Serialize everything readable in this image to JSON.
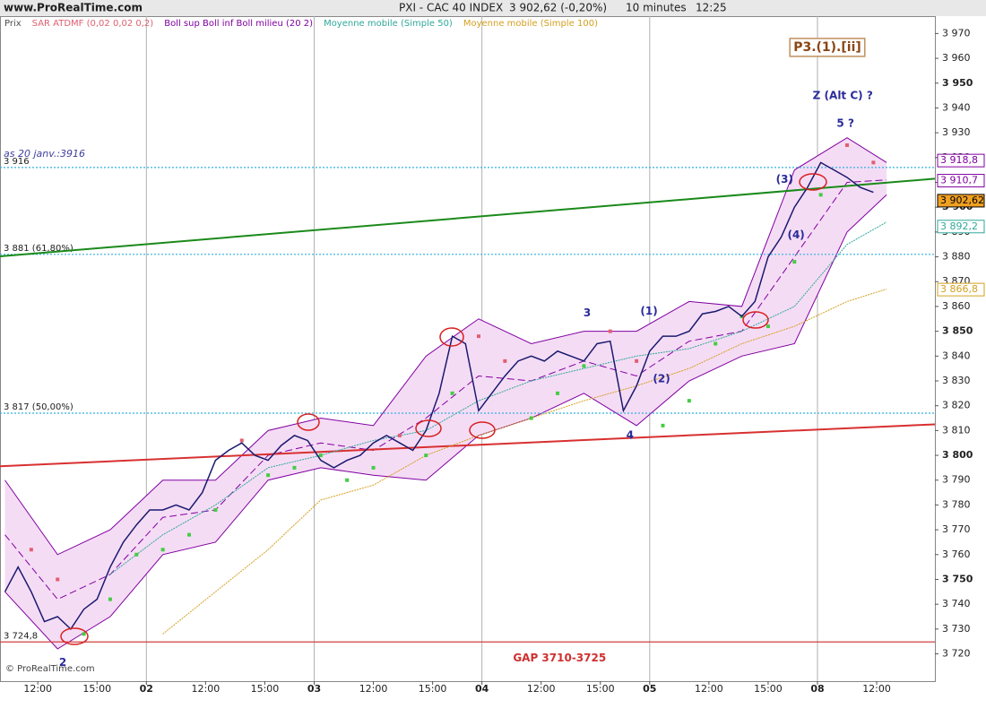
{
  "chart_data": {
    "type": "line",
    "source": "www.ProRealTime.com",
    "title": "PXI - CAC 40 INDEX",
    "last_price": "3 902,62 (-0,20%)",
    "interval": "10 minutes",
    "time": "12:25",
    "copyright": "© ProRealTime.com",
    "xlim": [
      6.5,
      290.7
    ],
    "xticks": [
      {
        "value": 18,
        "label": "12:00"
      },
      {
        "value": 36,
        "label": "15:00"
      },
      {
        "value": 51,
        "label": "02"
      },
      {
        "value": 69,
        "label": "12:00"
      },
      {
        "value": 87,
        "label": "15:00"
      },
      {
        "value": 102,
        "label": "03"
      },
      {
        "value": 120,
        "label": "12:00"
      },
      {
        "value": 138,
        "label": "15:00"
      },
      {
        "value": 153,
        "label": "04"
      },
      {
        "value": 171,
        "label": "12:00"
      },
      {
        "value": 189,
        "label": "15:00"
      },
      {
        "value": 204,
        "label": "05"
      },
      {
        "value": 222,
        "label": "12:00"
      },
      {
        "value": 240,
        "label": "15:00"
      },
      {
        "value": 255,
        "label": "08"
      },
      {
        "value": 273,
        "label": "12:00"
      }
    ],
    "ylim": [
      3709,
      3977
    ],
    "yticks": [
      {
        "value": 3720,
        "label": "3 720"
      },
      {
        "value": 3730,
        "label": "3 730"
      },
      {
        "value": 3740,
        "label": "3 740"
      },
      {
        "value": 3750,
        "label": "3 750"
      },
      {
        "value": 3760,
        "label": "3 760"
      },
      {
        "value": 3770,
        "label": "3 770"
      },
      {
        "value": 3780,
        "label": "3 780"
      },
      {
        "value": 3790,
        "label": "3 790"
      },
      {
        "value": 3800,
        "label": "3 800"
      },
      {
        "value": 3810,
        "label": "3 810"
      },
      {
        "value": 3820,
        "label": "3 820"
      },
      {
        "value": 3830,
        "label": "3 830"
      },
      {
        "value": 3840,
        "label": "3 840"
      },
      {
        "value": 3850,
        "label": "3 850"
      },
      {
        "value": 3860,
        "label": "3 860"
      },
      {
        "value": 3870,
        "label": "3 870"
      },
      {
        "value": 3880,
        "label": "3 880"
      },
      {
        "value": 3890,
        "label": "3 890"
      },
      {
        "value": 3900,
        "label": "3 900"
      },
      {
        "value": 3910,
        "label": "3 910"
      },
      {
        "value": 3920,
        "label": "3 920"
      },
      {
        "value": 3930,
        "label": "3 930"
      },
      {
        "value": 3940,
        "label": "3 940"
      },
      {
        "value": 3950,
        "label": "3 950"
      },
      {
        "value": 3960,
        "label": "3 960"
      },
      {
        "value": 3970,
        "label": "3 970"
      }
    ],
    "series": [
      {
        "name": "Prix",
        "color": "#1a1a6e",
        "x": [
          8,
          12,
          16,
          20,
          24,
          28,
          32,
          36,
          40,
          44,
          48,
          52,
          56,
          60,
          64,
          68,
          72,
          76,
          80,
          84,
          88,
          92,
          96,
          100,
          104,
          108,
          112,
          116,
          120,
          124,
          128,
          132,
          136,
          140,
          144,
          148,
          152,
          156,
          160,
          164,
          168,
          172,
          176,
          180,
          184,
          188,
          192,
          196,
          200,
          204,
          208,
          212,
          216,
          220,
          224,
          228,
          232,
          236,
          240,
          244,
          248,
          252,
          256,
          260,
          264,
          268,
          272
        ],
        "values": [
          3745,
          3755,
          3745,
          3733,
          3735,
          3730,
          3738,
          3742,
          3755,
          3765,
          3772,
          3778,
          3778,
          3780,
          3778,
          3785,
          3798,
          3802,
          3805,
          3800,
          3798,
          3804,
          3808,
          3806,
          3798,
          3795,
          3798,
          3800,
          3805,
          3808,
          3805,
          3802,
          3810,
          3825,
          3848,
          3845,
          3818,
          3825,
          3832,
          3838,
          3840,
          3838,
          3842,
          3840,
          3838,
          3845,
          3846,
          3818,
          3828,
          3842,
          3848,
          3848,
          3850,
          3857,
          3858,
          3860,
          3856,
          3862,
          3880,
          3888,
          3900,
          3908,
          3918,
          3915,
          3912,
          3908,
          3906
        ]
      },
      {
        "name": "Moyenne mobile (Simple 50)",
        "color": "#2fa89a",
        "x": [
          8,
          24,
          40,
          56,
          72,
          88,
          104,
          120,
          136,
          152,
          168,
          184,
          200,
          216,
          232,
          248,
          264,
          276
        ],
        "values": [
          null,
          null,
          3752,
          3768,
          3780,
          3795,
          3800,
          3806,
          3810,
          3822,
          3830,
          3835,
          3840,
          3843,
          3850,
          3860,
          3885,
          3894
        ]
      },
      {
        "name": "Moyenne mobile (Simple 100)",
        "color": "#d4a020",
        "x": [
          8,
          24,
          40,
          56,
          72,
          88,
          104,
          120,
          136,
          152,
          168,
          184,
          200,
          216,
          232,
          248,
          264,
          276
        ],
        "values": [
          null,
          null,
          null,
          3728,
          3745,
          3762,
          3782,
          3788,
          3800,
          3808,
          3815,
          3822,
          3828,
          3835,
          3845,
          3852,
          3862,
          3867
        ]
      }
    ],
    "bollinger": {
      "name": "Boll sup Boll inf Boll milieu (20 2)",
      "color": "#8000a0",
      "fill": "#f5dcf5",
      "x": [
        8,
        24,
        40,
        56,
        72,
        88,
        104,
        120,
        136,
        152,
        168,
        184,
        200,
        216,
        232,
        248,
        264,
        276
      ],
      "upper": [
        3790,
        3760,
        3770,
        3790,
        3790,
        3810,
        3815,
        3812,
        3840,
        3855,
        3845,
        3850,
        3850,
        3862,
        3860,
        3915,
        3928,
        3918
      ],
      "middle": [
        3768,
        3742,
        3752,
        3775,
        3778,
        3800,
        3805,
        3802,
        3815,
        3832,
        3830,
        3838,
        3832,
        3846,
        3850,
        3880,
        3910,
        3911
      ],
      "lower": [
        3745,
        3722,
        3735,
        3760,
        3765,
        3790,
        3795,
        3792,
        3790,
        3808,
        3815,
        3825,
        3812,
        3830,
        3840,
        3845,
        3890,
        3905
      ]
    },
    "sar": {
      "name": "SAR ATDMF (0,02 0,02 0,2)",
      "color": "#e06070",
      "x": [
        16,
        24,
        32,
        40,
        48,
        56,
        64,
        72,
        80,
        88,
        96,
        104,
        112,
        120,
        128,
        136,
        144,
        152,
        160,
        168,
        176,
        184,
        192,
        200,
        208,
        216,
        224,
        232,
        240,
        248,
        256,
        264,
        272
      ],
      "values": [
        3762,
        3750,
        3728,
        3742,
        3760,
        3762,
        3768,
        3778,
        3806,
        3792,
        3795,
        3800,
        3790,
        3795,
        3808,
        3800,
        3825,
        3848,
        3838,
        3815,
        3825,
        3836,
        3850,
        3838,
        3812,
        3822,
        3845,
        3856,
        3852,
        3878,
        3905,
        3925,
        3918
      ],
      "colors": [
        "#e06070",
        "#e06070",
        "#44cc44",
        "#44cc44",
        "#44cc44",
        "#44cc44",
        "#44cc44",
        "#44cc44",
        "#e06070",
        "#44cc44",
        "#44cc44",
        "#44cc44",
        "#44cc44",
        "#44cc44",
        "#e06070",
        "#44cc44",
        "#44cc44",
        "#e06070",
        "#e06070",
        "#44cc44",
        "#44cc44",
        "#44cc44",
        "#e06070",
        "#e06070",
        "#44cc44",
        "#44cc44",
        "#44cc44",
        "#44cc44",
        "#44cc44",
        "#44cc44",
        "#44cc44",
        "#e06070",
        "#e06070"
      ]
    },
    "levels": [
      {
        "value": 3916,
        "label": "3 916",
        "note": "as 20 janv.:3916",
        "color": "#30b0e0",
        "style": "dotted"
      },
      {
        "value": 3881,
        "label": "3 881 (61,80%)",
        "color": "#30b0e0",
        "style": "dotted"
      },
      {
        "value": 3817,
        "label": "3 817 (50,00%)",
        "color": "#30b0e0",
        "style": "dotted"
      },
      {
        "value": 3724.8,
        "label": "3 724,8",
        "color": "#d04040",
        "style": "solid"
      }
    ],
    "trendlines": [
      {
        "x": [
          6.5,
          290.7
        ],
        "values": [
          3880.2,
          3911.5
        ],
        "color": "#1a8a1a"
      },
      {
        "x": [
          6.5,
          290.7
        ],
        "values": [
          3795.6,
          3812.5
        ],
        "color": "#d83030"
      }
    ],
    "last_labels": [
      {
        "value": 3918.8,
        "label": "3 918,8",
        "color": "#8000a0"
      },
      {
        "value": 3910.7,
        "label": "3 910,7",
        "color": "#8000a0"
      },
      {
        "value": 3902.62,
        "label": "3 902,62",
        "color": "#000000",
        "background": "#f0a020"
      },
      {
        "value": 3892.2,
        "label": "3 892,2",
        "color": "#2fa89a"
      },
      {
        "value": 3866.8,
        "label": "3 866,8",
        "color": "#d4a020"
      }
    ],
    "annotations": [
      {
        "text": "P3.(1).[ii]",
        "x": 258,
        "y": 3964.4,
        "color": "#8b4513",
        "box": true
      },
      {
        "text": "Z (Alt C) ?",
        "x": 262.7,
        "y": 3944.9,
        "color": "#2a2a9a"
      },
      {
        "text": "5 ?",
        "x": 263.5,
        "y": 3933.7,
        "color": "#2a2a9a"
      },
      {
        "text": "3",
        "x": 185,
        "y": 3857.2,
        "color": "#2a2a9a"
      },
      {
        "text": "(1)",
        "x": 203.8,
        "y": 3857.9,
        "color": "#2a2a9a"
      },
      {
        "text": "(2)",
        "x": 207.6,
        "y": 3830.8,
        "color": "#2a2a9a"
      },
      {
        "text": "(3)",
        "x": 245,
        "y": 3911,
        "color": "#2a2a9a"
      },
      {
        "text": "(4)",
        "x": 248.5,
        "y": 3888.6,
        "color": "#2a2a9a"
      },
      {
        "text": "4",
        "x": 198,
        "y": 3808,
        "color": "#2a2a9a"
      },
      {
        "text": "2",
        "x": 25.6,
        "y": 3716.4,
        "color": "#2a2a9a"
      },
      {
        "text": "GAP 3710-3725",
        "x": 176.6,
        "y": 3718.2,
        "color": "#d03030"
      }
    ]
  }
}
